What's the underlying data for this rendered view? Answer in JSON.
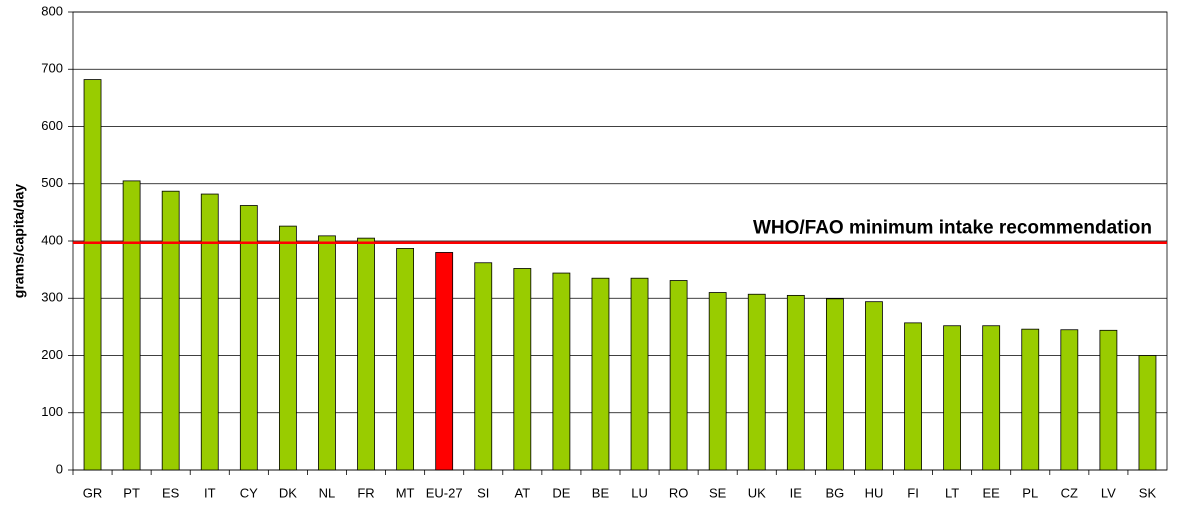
{
  "chart_data": {
    "type": "bar",
    "y_label": "grams/capita/day",
    "categories": [
      "GR",
      "PT",
      "ES",
      "IT",
      "CY",
      "DK",
      "NL",
      "FR",
      "MT",
      "EU-27",
      "SI",
      "AT",
      "DE",
      "BE",
      "LU",
      "RO",
      "SE",
      "UK",
      "IE",
      "BG",
      "HU",
      "FI",
      "LT",
      "EE",
      "PL",
      "CZ",
      "LV",
      "SK"
    ],
    "values": [
      682,
      505,
      487,
      482,
      462,
      426,
      409,
      405,
      387,
      380,
      362,
      352,
      344,
      335,
      335,
      331,
      310,
      307,
      305,
      299,
      294,
      257,
      252,
      252,
      246,
      245,
      244,
      200
    ],
    "colors": [
      "#99cc00",
      "#99cc00",
      "#99cc00",
      "#99cc00",
      "#99cc00",
      "#99cc00",
      "#99cc00",
      "#99cc00",
      "#99cc00",
      "#ff0000",
      "#99cc00",
      "#99cc00",
      "#99cc00",
      "#99cc00",
      "#99cc00",
      "#99cc00",
      "#99cc00",
      "#99cc00",
      "#99cc00",
      "#99cc00",
      "#99cc00",
      "#99cc00",
      "#99cc00",
      "#99cc00",
      "#99cc00",
      "#99cc00",
      "#99cc00",
      "#99cc00"
    ],
    "ylim": [
      0,
      800
    ],
    "yticks": [
      0,
      100,
      200,
      300,
      400,
      500,
      600,
      700,
      800
    ],
    "grid": true,
    "reference_line": {
      "value": 397,
      "label": "WHO/FAO minimum intake recommendation",
      "color": "#ff0000"
    }
  }
}
